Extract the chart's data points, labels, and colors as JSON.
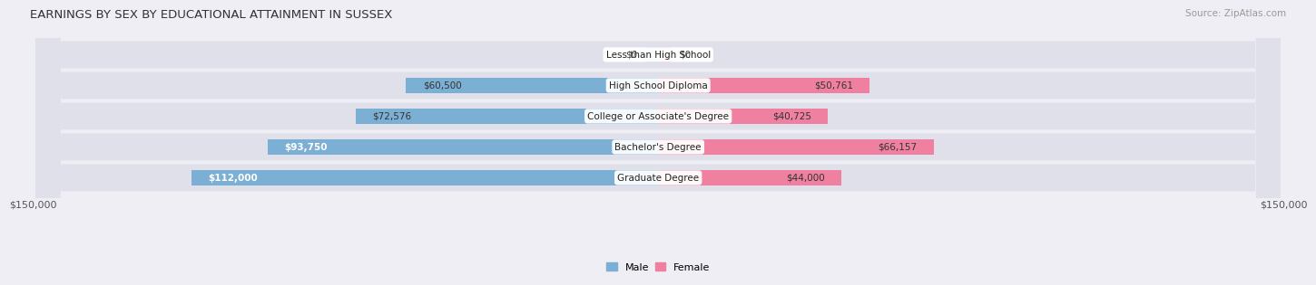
{
  "title": "EARNINGS BY SEX BY EDUCATIONAL ATTAINMENT IN SUSSEX",
  "source": "Source: ZipAtlas.com",
  "categories": [
    "Less than High School",
    "High School Diploma",
    "College or Associate's Degree",
    "Bachelor's Degree",
    "Graduate Degree"
  ],
  "male_values": [
    0,
    60500,
    72576,
    93750,
    112000
  ],
  "female_values": [
    0,
    50761,
    40725,
    66157,
    44000
  ],
  "male_labels": [
    "$0",
    "$60,500",
    "$72,576",
    "$93,750",
    "$112,000"
  ],
  "female_labels": [
    "$0",
    "$50,761",
    "$40,725",
    "$66,157",
    "$44,000"
  ],
  "male_color": "#7bafd4",
  "female_color": "#f080a0",
  "male_color_light": "#b8d0e8",
  "female_color_light": "#f5b8c8",
  "axis_max": 150000,
  "x_tick_left": "$150,000",
  "x_tick_right": "$150,000",
  "background_color": "#eeeef4",
  "row_bg_color": "#e0e0ea",
  "title_fontsize": 9.5,
  "source_fontsize": 7.5,
  "bar_label_fontsize": 7.5,
  "cat_label_fontsize": 7.5,
  "legend_fontsize": 8
}
